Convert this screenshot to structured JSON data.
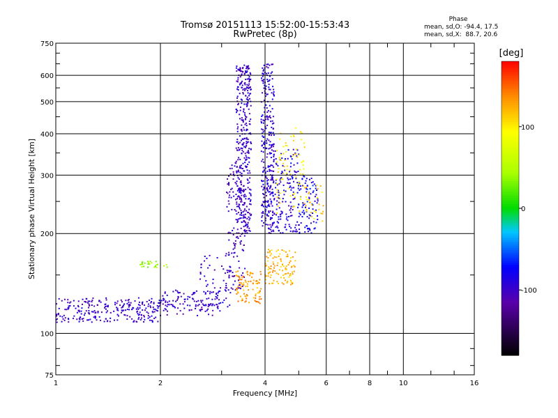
{
  "chart_data": {
    "type": "scatter",
    "title": "Tromsø 20151113 15:52:00-15:53:43",
    "subtitle": "RwPretec (8p)",
    "xlabel": "Frequency [MHz]",
    "ylabel": "Stationary phase Virtual Height [km]",
    "x_scale": "log",
    "y_scale": "log",
    "xlim": [
      1,
      16
    ],
    "ylim": [
      75,
      750
    ],
    "x_ticks": [
      1,
      2,
      4,
      6,
      8,
      10,
      16
    ],
    "y_ticks": [
      75,
      100,
      200,
      300,
      400,
      500,
      600,
      750
    ],
    "grid": true,
    "phase_info": {
      "title": "Phase",
      "line1": "mean, sd,O: -94.4, 17.5",
      "line2": "mean, sd,X:  88.7, 20.6"
    },
    "colorbar": {
      "label": "[deg]",
      "range": [
        -180,
        180
      ],
      "ticks": [
        100,
        0,
        -100
      ],
      "colormap": "rainbow"
    },
    "regions": [
      {
        "xmin": 1.0,
        "xmax": 2.0,
        "ymin": 108,
        "ymax": 128,
        "phase": -100,
        "n": 260
      },
      {
        "xmin": 2.0,
        "xmax": 3.0,
        "ymin": 113,
        "ymax": 135,
        "phase": -100,
        "n": 120
      },
      {
        "xmin": 2.6,
        "xmax": 3.2,
        "ymin": 120,
        "ymax": 175,
        "phase": -95,
        "n": 60
      },
      {
        "xmin": 3.1,
        "xmax": 3.5,
        "ymin": 135,
        "ymax": 330,
        "phase": -105,
        "n": 140
      },
      {
        "xmin": 3.3,
        "xmax": 3.65,
        "ymin": 200,
        "ymax": 650,
        "phase": -100,
        "n": 380
      },
      {
        "xmin": 3.9,
        "xmax": 4.25,
        "ymin": 200,
        "ymax": 650,
        "phase": -95,
        "n": 300
      },
      {
        "xmin": 4.2,
        "xmax": 5.0,
        "ymin": 200,
        "ymax": 360,
        "phase": -90,
        "n": 160
      },
      {
        "xmin": 5.0,
        "xmax": 5.7,
        "ymin": 200,
        "ymax": 300,
        "phase": -80,
        "n": 90
      },
      {
        "xmin": 3.3,
        "xmax": 3.9,
        "ymin": 123,
        "ymax": 155,
        "phase": 130,
        "n": 90
      },
      {
        "xmin": 4.0,
        "xmax": 4.9,
        "ymin": 140,
        "ymax": 180,
        "phase": 120,
        "n": 110
      },
      {
        "xmin": 4.3,
        "xmax": 5.2,
        "ymin": 230,
        "ymax": 420,
        "phase": 100,
        "n": 80
      },
      {
        "xmin": 5.2,
        "xmax": 5.9,
        "ymin": 215,
        "ymax": 280,
        "phase": 110,
        "n": 30
      },
      {
        "xmin": 1.75,
        "xmax": 2.1,
        "ymin": 158,
        "ymax": 165,
        "phase": 40,
        "n": 25
      }
    ]
  }
}
